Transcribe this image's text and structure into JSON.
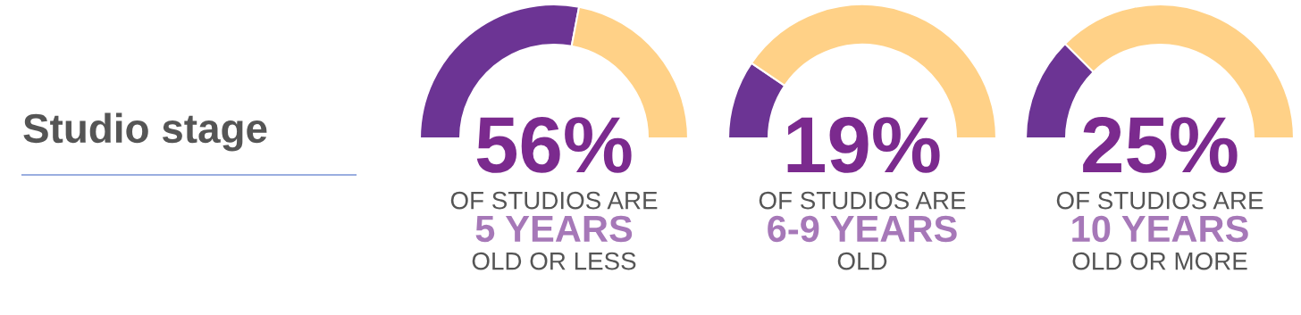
{
  "chart_data": [
    {
      "type": "other",
      "title": "Studio stage"
    },
    {
      "type": "donut",
      "categories": [
        null,
        null
      ],
      "values": [
        56,
        44
      ],
      "colors": [
        "#6c3494",
        "#ffd187"
      ],
      "annotations": [
        "56%",
        "OF STUDIOS ARE",
        "5 YEARS",
        "OLD OR LESS"
      ]
    },
    {
      "type": "donut",
      "categories": [
        null,
        null
      ],
      "values": [
        19,
        81
      ],
      "colors": [
        "#6c3494",
        "#ffd187"
      ],
      "annotations": [
        "19%",
        "OF STUDIOS ARE",
        "6-9 YEARS",
        "OLD"
      ]
    },
    {
      "type": "donut",
      "categories": [
        null,
        null
      ],
      "values": [
        25,
        75
      ],
      "colors": [
        "#6c3494",
        "#ffd187"
      ],
      "annotations": [
        "25%",
        "OF STUDIOS ARE",
        "10 YEARS",
        "OLD OR MORE"
      ]
    }
  ]
}
